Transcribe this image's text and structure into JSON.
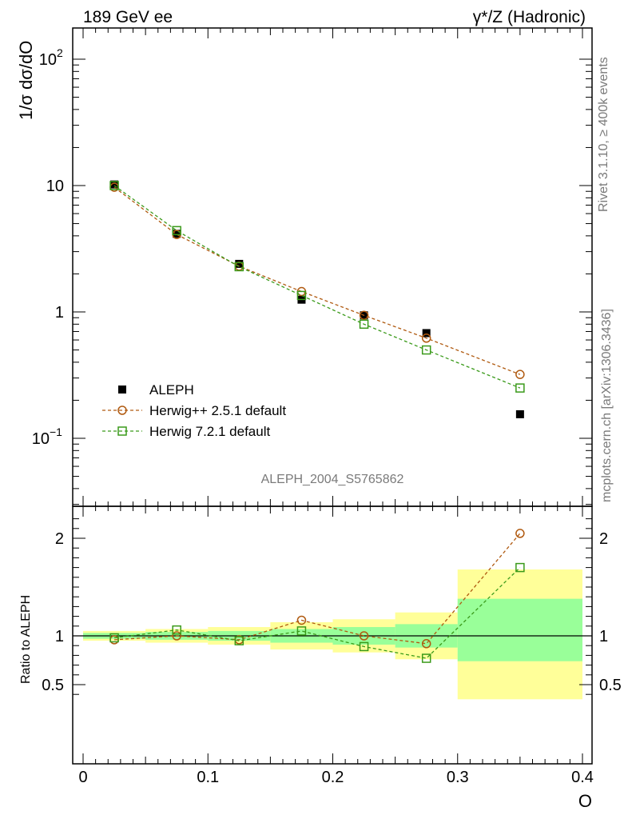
{
  "header": {
    "left": "189 GeV ee",
    "right": "γ*/Z (Hadronic)"
  },
  "side_text": {
    "rivet": "Rivet 3.1.10, ≥ 400k events",
    "mcplots": "mcplots.cern.ch [arXiv:1306.3436]"
  },
  "analysis_id": "ALEPH_2004_S5765862",
  "colors": {
    "data": "#000000",
    "herwigpp": "#b05a10",
    "herwig7": "#3a9a1a",
    "band_outer": "#ffff99",
    "band_inner": "#99ff99"
  },
  "chart_data": [
    {
      "type": "line",
      "panel": "main",
      "ylabel": "1/σ  dσ/dO",
      "yscale": "log",
      "xlim": [
        0,
        0.4
      ],
      "ylim": [
        0.03,
        200
      ],
      "ytick_labels": [
        {
          "value": 100,
          "base": "10",
          "exp": "2"
        },
        {
          "value": 10,
          "base": "10",
          "exp": ""
        },
        {
          "value": 1,
          "base": "1",
          "exp": ""
        },
        {
          "value": 0.1,
          "base": "10",
          "exp": "−1"
        }
      ],
      "bins": [
        [
          0,
          0.05
        ],
        [
          0.05,
          0.1
        ],
        [
          0.1,
          0.15
        ],
        [
          0.15,
          0.2
        ],
        [
          0.2,
          0.25
        ],
        [
          0.25,
          0.3
        ],
        [
          0.3,
          0.4
        ]
      ],
      "series": [
        {
          "name": "ALEPH",
          "key": "data",
          "marker": "filled-square",
          "x": [
            0.025,
            0.075,
            0.125,
            0.175,
            0.225,
            0.275,
            0.35
          ],
          "y": [
            10.2,
            4.15,
            2.4,
            1.25,
            0.94,
            0.68,
            0.155
          ]
        },
        {
          "name": "Herwig++ 2.5.1 default",
          "key": "herwigpp",
          "marker": "open-circle",
          "x": [
            0.025,
            0.075,
            0.125,
            0.175,
            0.225,
            0.275,
            0.35
          ],
          "y": [
            9.7,
            4.1,
            2.3,
            1.45,
            0.94,
            0.62,
            0.32
          ]
        },
        {
          "name": "Herwig 7.2.1 default",
          "key": "herwig7",
          "marker": "open-square",
          "x": [
            0.025,
            0.075,
            0.125,
            0.175,
            0.225,
            0.275,
            0.35
          ],
          "y": [
            10.0,
            4.4,
            2.28,
            1.35,
            0.8,
            0.5,
            0.25
          ]
        }
      ],
      "legend": "bottom-left"
    },
    {
      "type": "line",
      "panel": "ratio",
      "ylabel": "Ratio to ALEPH",
      "xlabel": "O",
      "xlim": [
        0,
        0.4
      ],
      "ylim": [
        0.35,
        2.3
      ],
      "xticks": [
        "0",
        "0.1",
        "0.2",
        "0.3",
        "0.4"
      ],
      "yticks": [
        "0.5",
        "1",
        "2"
      ],
      "reference": 1,
      "bands": {
        "bins": [
          [
            0,
            0.05
          ],
          [
            0.05,
            0.1
          ],
          [
            0.1,
            0.15
          ],
          [
            0.15,
            0.2
          ],
          [
            0.2,
            0.25
          ],
          [
            0.25,
            0.3
          ],
          [
            0.3,
            0.4
          ]
        ],
        "outer": [
          [
            0.95,
            1.05
          ],
          [
            0.93,
            1.07
          ],
          [
            0.91,
            1.09
          ],
          [
            0.86,
            1.14
          ],
          [
            0.83,
            1.17
          ],
          [
            0.76,
            1.24
          ],
          [
            0.35,
            1.68
          ]
        ],
        "inner": [
          [
            0.97,
            1.03
          ],
          [
            0.96,
            1.04
          ],
          [
            0.95,
            1.05
          ],
          [
            0.93,
            1.07
          ],
          [
            0.91,
            1.09
          ],
          [
            0.88,
            1.12
          ],
          [
            0.74,
            1.38
          ]
        ]
      },
      "series": [
        {
          "name": "Herwig++ 2.5.1 default",
          "key": "herwigpp",
          "marker": "open-circle",
          "x": [
            0.025,
            0.075,
            0.125,
            0.175,
            0.225,
            0.275,
            0.35
          ],
          "y": [
            0.96,
            1.0,
            0.96,
            1.16,
            1.0,
            0.92,
            2.05
          ]
        },
        {
          "name": "Herwig 7.2.1 default",
          "key": "herwig7",
          "marker": "open-square",
          "x": [
            0.025,
            0.075,
            0.125,
            0.175,
            0.225,
            0.275,
            0.35
          ],
          "y": [
            0.98,
            1.06,
            0.95,
            1.05,
            0.89,
            0.77,
            1.7
          ]
        }
      ]
    }
  ]
}
